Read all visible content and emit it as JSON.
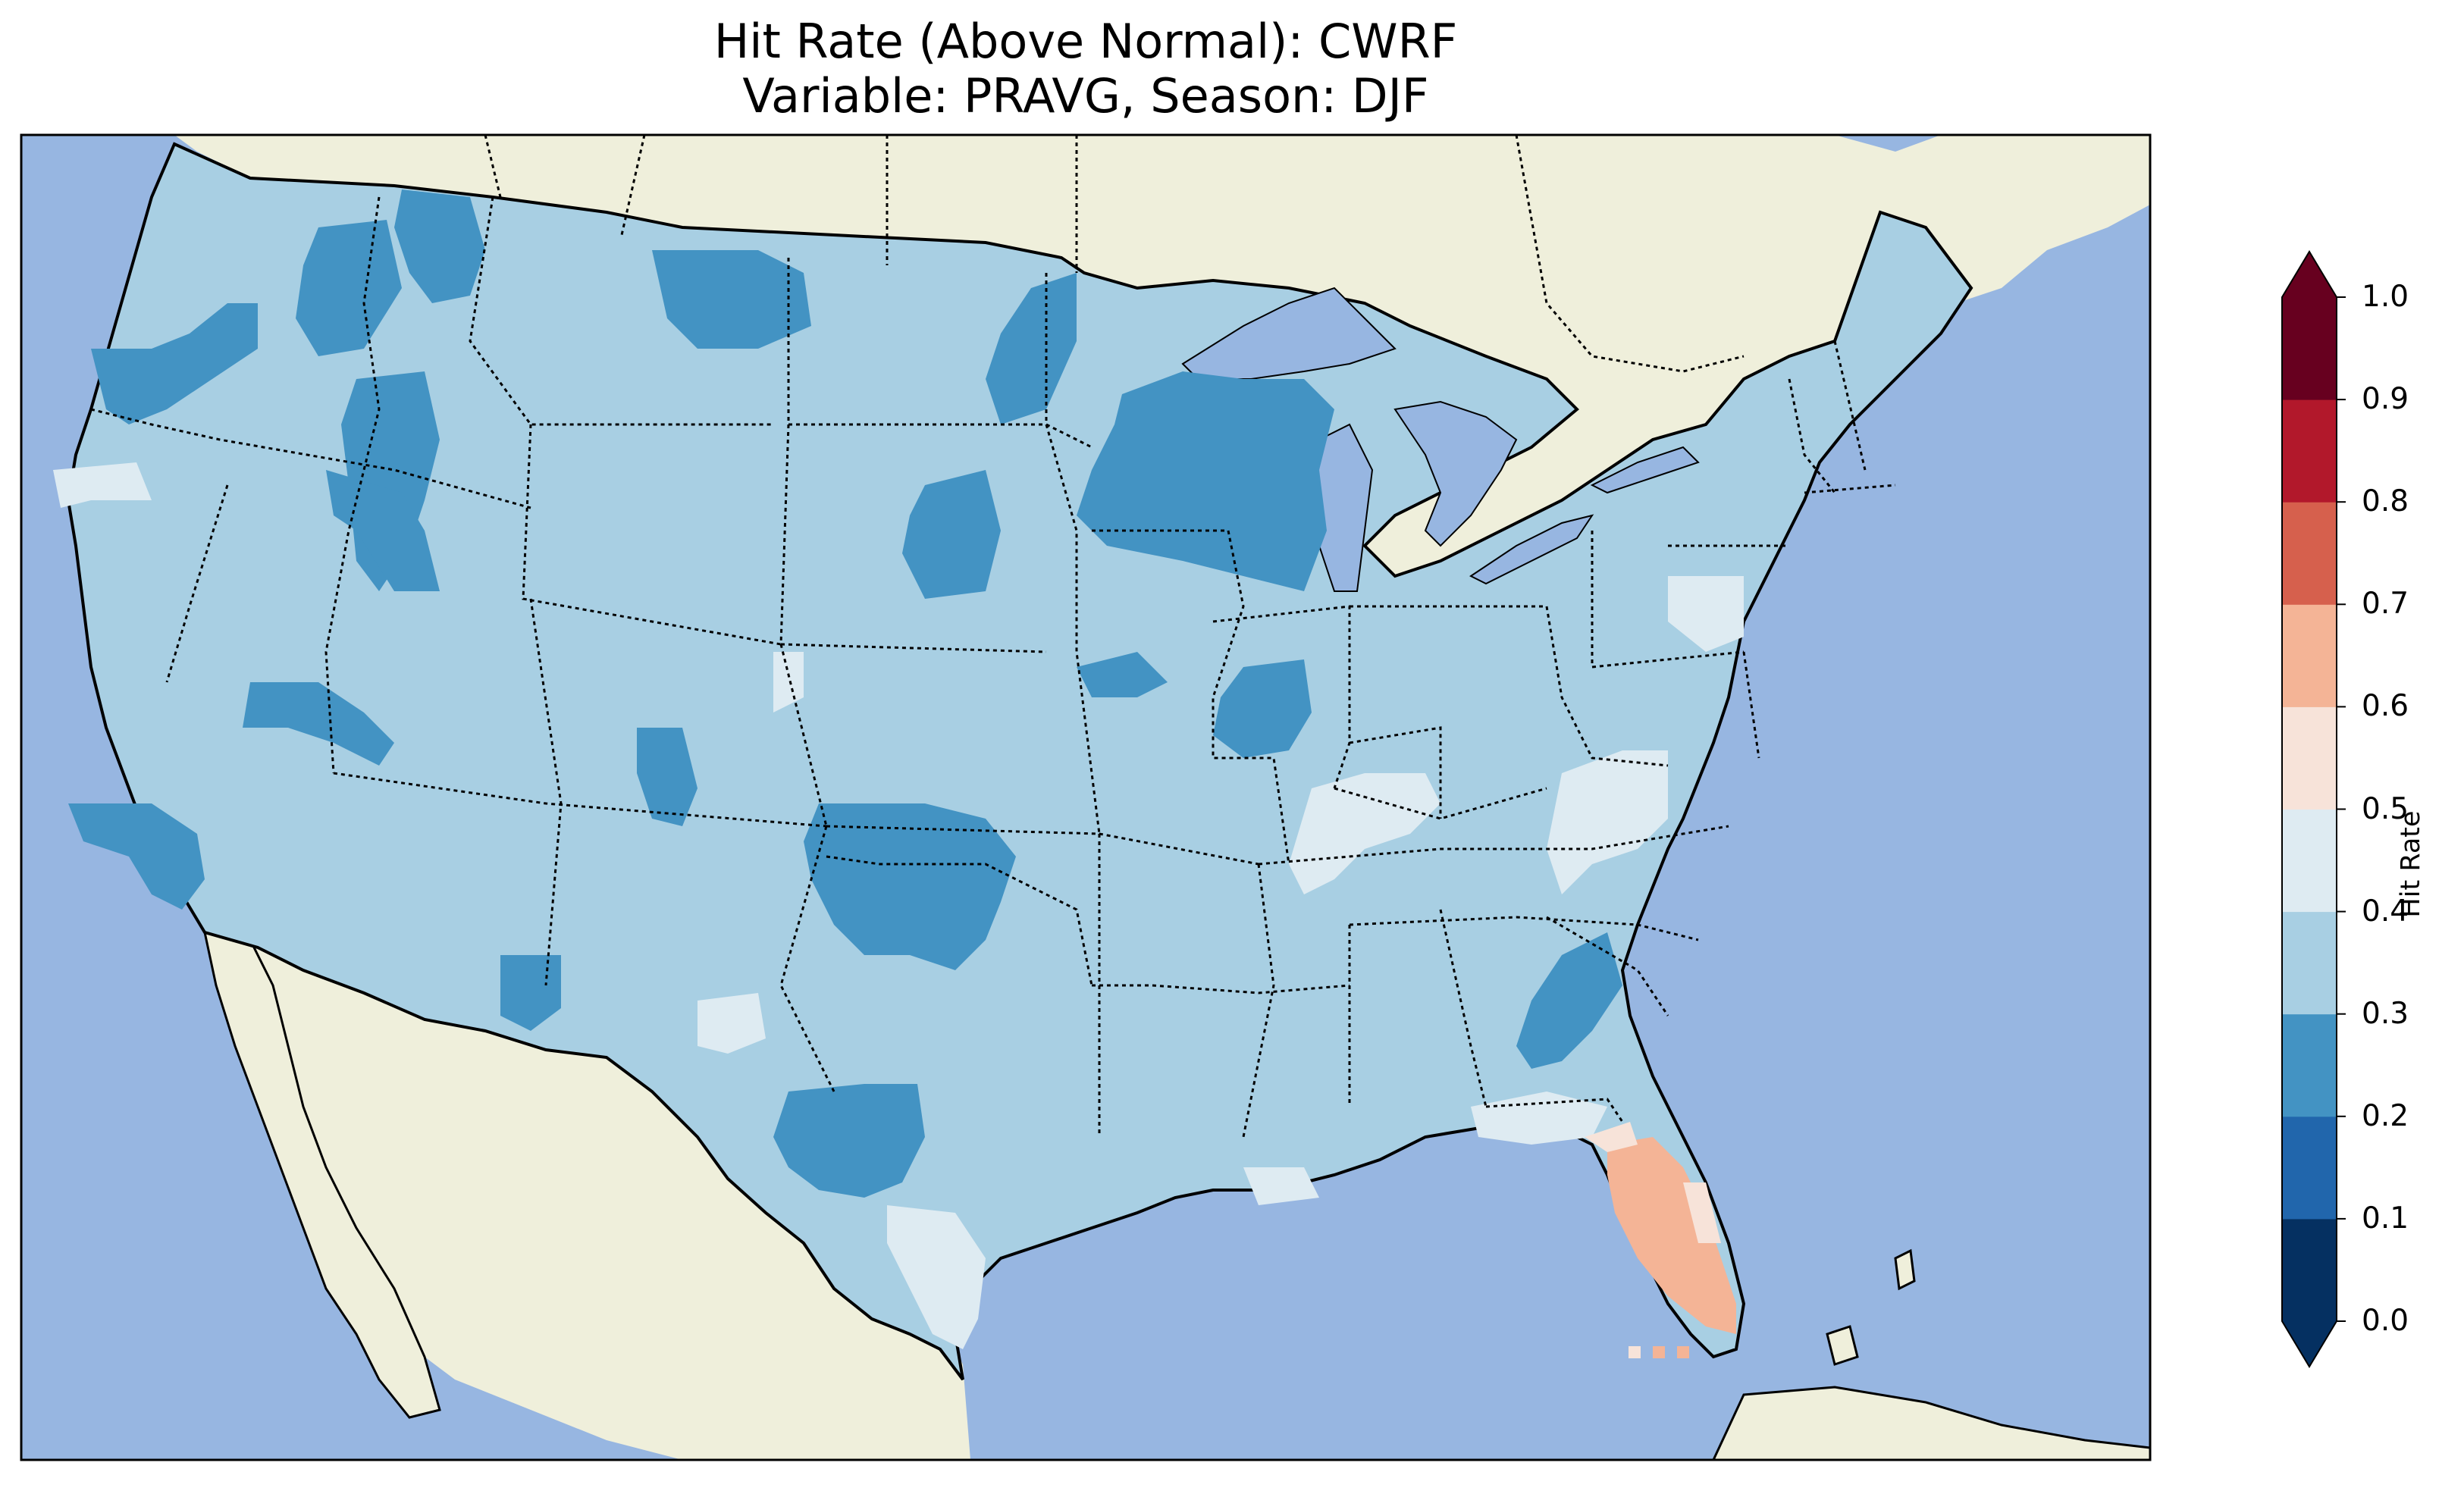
{
  "title": "Hit Rate (Above Normal): CWRF",
  "subtitle": "Variable: PRAVG, Season: DJF",
  "colorbar": {
    "label": "Hit Rate",
    "ticks": [
      "0.0",
      "0.1",
      "0.2",
      "0.3",
      "0.4",
      "0.5",
      "0.6",
      "0.7",
      "0.8",
      "0.9",
      "1.0"
    ],
    "bins": [
      {
        "range": "0.0-0.1",
        "color": "#053061"
      },
      {
        "range": "0.1-0.2",
        "color": "#2166ac"
      },
      {
        "range": "0.2-0.3",
        "color": "#4393c3"
      },
      {
        "range": "0.3-0.4",
        "color": "#a8cfe3"
      },
      {
        "range": "0.4-0.5",
        "color": "#deebf2"
      },
      {
        "range": "0.5-0.6",
        "color": "#f7e3d9"
      },
      {
        "range": "0.6-0.7",
        "color": "#f4b496"
      },
      {
        "range": "0.7-0.8",
        "color": "#d6604d"
      },
      {
        "range": "0.8-0.9",
        "color": "#b2182b"
      },
      {
        "range": "0.9-1.0",
        "color": "#67001f"
      }
    ],
    "extend": "both"
  },
  "map": {
    "region": "Contiguous United States",
    "ocean_color": "#97b6e1",
    "land_color": "#efefdb",
    "background_value": "0.3-0.4",
    "features": [
      {
        "region": "Montana / Idaho",
        "value": "0.2-0.3"
      },
      {
        "region": "Washington / Oregon",
        "value": "0.2-0.3"
      },
      {
        "region": "North Dakota / Minnesota",
        "value": "0.2-0.3"
      },
      {
        "region": "Wisconsin / Michigan",
        "value": "0.2-0.3"
      },
      {
        "region": "Central California",
        "value": "0.2-0.3"
      },
      {
        "region": "Oklahoma / Texas Panhandle",
        "value": "0.2-0.3"
      },
      {
        "region": "Georgia / South Carolina",
        "value": "0.2-0.3"
      },
      {
        "region": "Central Texas",
        "value": "0.2-0.3"
      },
      {
        "region": "Kentucky / Tennessee",
        "value": "0.4-0.5"
      },
      {
        "region": "South Texas",
        "value": "0.4-0.5"
      },
      {
        "region": "Gulf Coast",
        "value": "0.4-0.5"
      },
      {
        "region": "Pennsylvania / Virginia",
        "value": "0.4-0.5"
      },
      {
        "region": "North Carolina",
        "value": "0.4-0.5"
      },
      {
        "region": "Florida Peninsula",
        "value": "0.6-0.7"
      },
      {
        "region": "North Florida",
        "value": "0.5-0.6"
      }
    ]
  }
}
